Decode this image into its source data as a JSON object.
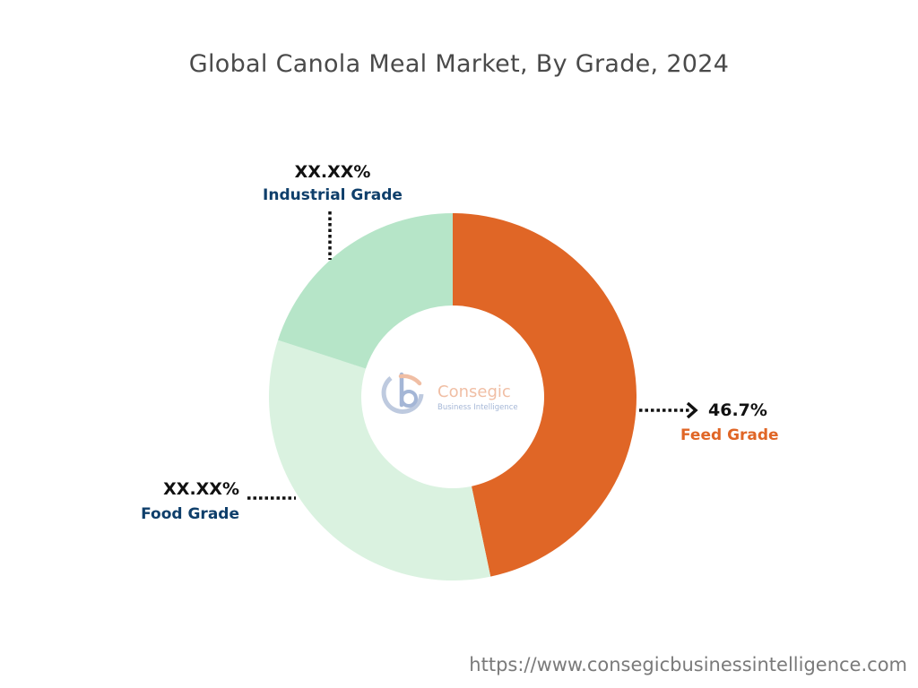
{
  "chart_data": {
    "type": "pie",
    "title": "Global Canola Meal Market, By Grade, 2024",
    "donut": true,
    "slices": [
      {
        "name": "Feed Grade",
        "value": 46.7,
        "label": "46.7%",
        "color": "#e06626",
        "label_color": "#e06626"
      },
      {
        "name": "Food Grade",
        "value": 33.3,
        "label": "XX.XX%",
        "color": "#daf2e0",
        "label_color": "#0f3f6b"
      },
      {
        "name": "Industrial Grade",
        "value": 20.0,
        "label": "XX.XX%",
        "color": "#b6e5c8",
        "label_color": "#0f3f6b"
      }
    ]
  },
  "center_logo": {
    "name": "Consegic",
    "tagline": "Business Intelligence",
    "accent_color": "#e58a5a",
    "icon": "consegic-logo-icon"
  },
  "footer": {
    "url": "https://www.consegicbusinessintelligence.com"
  }
}
